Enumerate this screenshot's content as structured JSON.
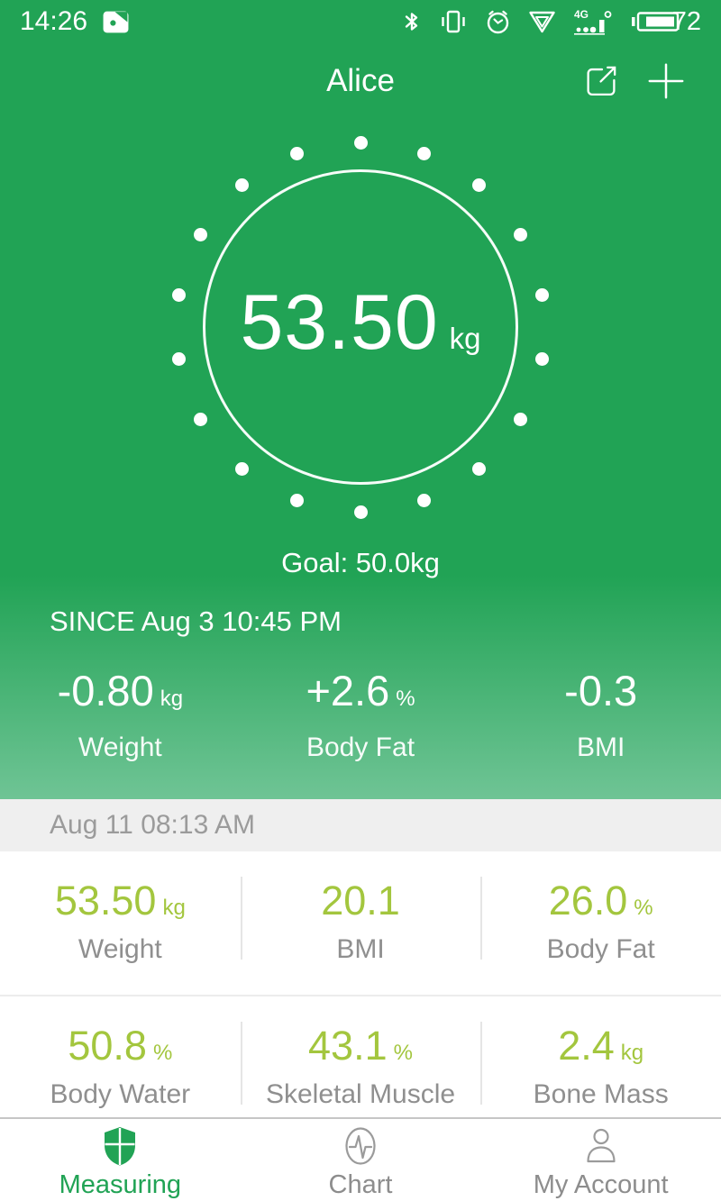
{
  "colors": {
    "primary_green": "#21a355",
    "green_gradient_bottom": "#6fc495",
    "accent_value_green": "#a3c63e",
    "label_gray": "#8f8f8f",
    "date_bar_bg": "#efefef",
    "date_bar_text": "#9b9b9b",
    "inactive_gray": "#8d8d8d"
  },
  "status_bar": {
    "time": "14:26",
    "battery_level": "72",
    "signal_label": "4G",
    "icons": [
      "gallery-icon",
      "bluetooth-icon",
      "vibrate-icon",
      "alarm-clock-icon",
      "vpn-icon",
      "signal-4g-icon",
      "battery-icon"
    ]
  },
  "header": {
    "title": "Alice",
    "actions": [
      "share-icon",
      "add-icon"
    ]
  },
  "measurement": {
    "value": "53.50",
    "unit": "kg",
    "goal_text": "Goal: 50.0kg"
  },
  "since": {
    "text": "SINCE Aug 3 10:45 PM"
  },
  "delta_stats": [
    {
      "value": "-0.80",
      "unit": "kg",
      "label": "Weight"
    },
    {
      "value": "+2.6",
      "unit": "%",
      "label": "Body Fat"
    },
    {
      "value": "-0.3",
      "unit": "",
      "label": "BMI"
    }
  ],
  "record": {
    "timestamp": "Aug 11 08:13 AM",
    "rows": [
      [
        {
          "value": "53.50",
          "unit": "kg",
          "label": "Weight"
        },
        {
          "value": "20.1",
          "unit": "",
          "label": "BMI"
        },
        {
          "value": "26.0",
          "unit": "%",
          "label": "Body Fat"
        }
      ],
      [
        {
          "value": "50.8",
          "unit": "%",
          "label": "Body Water"
        },
        {
          "value": "43.1",
          "unit": "%",
          "label": "Skeletal Muscle"
        },
        {
          "value": "2.4",
          "unit": "kg",
          "label": "Bone Mass"
        }
      ]
    ]
  },
  "tab_bar": {
    "items": [
      {
        "label": "Measuring",
        "icon": "shield-icon",
        "active": true
      },
      {
        "label": "Chart",
        "icon": "pulse-icon",
        "active": false
      },
      {
        "label": "My Account",
        "icon": "person-icon",
        "active": false
      }
    ]
  }
}
